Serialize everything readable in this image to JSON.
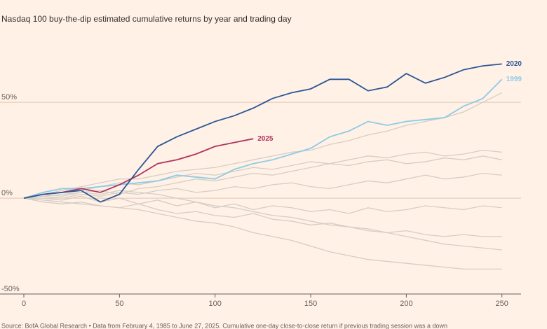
{
  "chart_data": {
    "type": "line",
    "subtitle": "Nasdaq 100 buy-the-dip estimated cumulative returns by year and trading day",
    "source": "Source: BofA Global Research • Data from February 4, 1985 to June 27, 2025. Cumulative one-day close-to-close return if previous trading session was a down",
    "x": [
      0,
      10,
      20,
      30,
      40,
      50,
      60,
      70,
      80,
      90,
      100,
      110,
      120,
      130,
      140,
      150,
      160,
      170,
      180,
      190,
      200,
      210,
      220,
      230,
      240,
      250
    ],
    "xlim": [
      0,
      260
    ],
    "xticks": [
      0,
      50,
      100,
      150,
      200,
      250
    ],
    "ylim": [
      -50,
      80
    ],
    "yticks": [
      {
        "value": -50,
        "label": "-50%"
      },
      {
        "value": 0,
        "label": "0%"
      },
      {
        "value": 50,
        "label": "50%"
      }
    ],
    "grid": true,
    "series": [
      {
        "color": "#d6cdc6",
        "values": [
          0,
          2,
          4,
          6,
          8,
          10,
          10,
          12,
          14,
          15,
          16,
          18,
          20,
          22,
          24,
          25,
          28,
          30,
          33,
          35,
          38,
          40,
          42,
          45,
          50,
          55
        ]
      },
      {
        "color": "#d6cdc6",
        "values": [
          0,
          -1,
          -2,
          -3,
          -4,
          -5,
          -6,
          -8,
          -10,
          -12,
          -13,
          -15,
          -18,
          -20,
          -22,
          -25,
          -28,
          -30,
          -32,
          -33,
          -34,
          -35,
          -36,
          -37,
          -37,
          -37
        ]
      },
      {
        "color": "#d6cdc6",
        "values": [
          0,
          1,
          0,
          2,
          1,
          3,
          2,
          4,
          5,
          3,
          4,
          6,
          5,
          7,
          8,
          6,
          5,
          7,
          9,
          8,
          10,
          12,
          10,
          11,
          13,
          12
        ]
      },
      {
        "color": "#d6cdc6",
        "values": [
          0,
          -2,
          -3,
          -2,
          -4,
          -5,
          -3,
          -6,
          -8,
          -7,
          -9,
          -10,
          -8,
          -11,
          -12,
          -14,
          -13,
          -15,
          -16,
          -18,
          -17,
          -19,
          -20,
          -19,
          -20,
          -20
        ]
      },
      {
        "color": "#d6cdc6",
        "values": [
          0,
          3,
          5,
          4,
          6,
          8,
          7,
          9,
          11,
          13,
          12,
          14,
          16,
          15,
          17,
          19,
          18,
          20,
          22,
          21,
          23,
          24,
          22,
          23,
          25,
          24
        ]
      },
      {
        "color": "#d6cdc6",
        "values": [
          0,
          0,
          -1,
          1,
          -2,
          0,
          -3,
          -1,
          -4,
          -2,
          -5,
          -3,
          -6,
          -4,
          -5,
          -7,
          -6,
          -8,
          -5,
          -7,
          -6,
          -4,
          -5,
          -6,
          -4,
          -5
        ]
      },
      {
        "color": "#d6cdc6",
        "values": [
          0,
          2,
          1,
          3,
          2,
          4,
          3,
          2,
          0,
          -2,
          -4,
          -5,
          -7,
          -9,
          -10,
          -12,
          -14,
          -15,
          -17,
          -18,
          -20,
          -22,
          -24,
          -25,
          -26,
          -27
        ]
      },
      {
        "color": "#d6cdc6",
        "values": [
          0,
          1,
          2,
          3,
          4,
          2,
          5,
          6,
          8,
          10,
          9,
          11,
          13,
          12,
          14,
          16,
          18,
          17,
          19,
          20,
          18,
          19,
          21,
          20,
          22,
          20
        ]
      },
      {
        "name": "1999",
        "color": "#8ccbe8",
        "values": [
          0,
          3,
          5,
          5,
          6,
          7,
          8,
          9,
          12,
          11,
          10,
          15,
          18,
          20,
          23,
          26,
          32,
          35,
          40,
          38,
          40,
          41,
          42,
          48,
          52,
          62
        ]
      },
      {
        "name": "2025",
        "color": "#b0335c",
        "values": [
          0,
          2,
          3,
          5,
          3,
          7,
          12,
          18,
          20,
          23,
          27,
          29,
          31,
          null,
          null,
          null,
          null,
          null,
          null,
          null,
          null,
          null,
          null,
          null,
          null,
          null
        ]
      },
      {
        "name": "2020",
        "color": "#2b5797",
        "values": [
          0,
          2,
          3,
          4,
          -2,
          2,
          15,
          27,
          32,
          36,
          40,
          43,
          47,
          52,
          55,
          57,
          62,
          62,
          56,
          58,
          65,
          60,
          63,
          67,
          69,
          70
        ]
      }
    ]
  }
}
